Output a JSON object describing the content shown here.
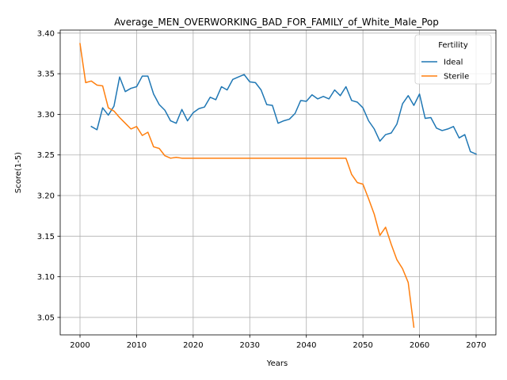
{
  "chart_data": {
    "type": "line",
    "title": "Average_MEN_OVERWORKING_BAD_FOR_FAMILY_of_White_Male_Pop",
    "xlabel": "Years",
    "ylabel": "Score(1-5)",
    "xlim": [
      1996.5,
      2073.5
    ],
    "ylim": [
      3.0285,
      3.4037
    ],
    "xticks": [
      2000,
      2010,
      2020,
      2030,
      2040,
      2050,
      2060,
      2070
    ],
    "yticks": [
      3.05,
      3.1,
      3.15,
      3.2,
      3.25,
      3.3,
      3.35,
      3.4
    ],
    "grid": true,
    "legend": {
      "title": "Fertility",
      "position": "top-right"
    },
    "series": [
      {
        "name": "Ideal",
        "color": "#1f77b4",
        "x": [
          2002,
          2003,
          2004,
          2005,
          2006,
          2007,
          2008,
          2009,
          2010,
          2011,
          2012,
          2013,
          2014,
          2015,
          2016,
          2017,
          2018,
          2019,
          2020,
          2021,
          2022,
          2023,
          2024,
          2025,
          2026,
          2027,
          2028,
          2029,
          2030,
          2031,
          2032,
          2033,
          2034,
          2035,
          2036,
          2037,
          2038,
          2039,
          2040,
          2041,
          2042,
          2043,
          2044,
          2045,
          2046,
          2047,
          2048,
          2049,
          2050,
          2051,
          2052,
          2053,
          2054,
          2055,
          2056,
          2057,
          2058,
          2059,
          2060,
          2061,
          2062,
          2063,
          2064,
          2065,
          2066,
          2067,
          2068,
          2069,
          2070
        ],
        "values": [
          3.285,
          3.281,
          3.308,
          3.299,
          3.31,
          3.346,
          3.328,
          3.332,
          3.334,
          3.347,
          3.347,
          3.325,
          3.312,
          3.305,
          3.292,
          3.289,
          3.306,
          3.292,
          3.302,
          3.307,
          3.309,
          3.321,
          3.318,
          3.334,
          3.33,
          3.343,
          3.346,
          3.349,
          3.34,
          3.339,
          3.33,
          3.312,
          3.311,
          3.289,
          3.292,
          3.294,
          3.301,
          3.317,
          3.316,
          3.324,
          3.319,
          3.322,
          3.319,
          3.33,
          3.323,
          3.334,
          3.317,
          3.315,
          3.308,
          3.292,
          3.282,
          3.267,
          3.275,
          3.277,
          3.288,
          3.313,
          3.323,
          3.311,
          3.325,
          3.295,
          3.296,
          3.283,
          3.28,
          3.282,
          3.285,
          3.271,
          3.275,
          3.254,
          3.251
        ]
      },
      {
        "name": "Sterile",
        "color": "#ff7f0e",
        "x": [
          2000,
          2001,
          2002,
          2003,
          2004,
          2005,
          2006,
          2007,
          2008,
          2009,
          2010,
          2011,
          2012,
          2013,
          2014,
          2015,
          2016,
          2017,
          2018,
          2019,
          2020,
          2021,
          2022,
          2023,
          2024,
          2025,
          2026,
          2027,
          2028,
          2029,
          2030,
          2031,
          2032,
          2033,
          2034,
          2035,
          2036,
          2037,
          2038,
          2039,
          2040,
          2041,
          2042,
          2043,
          2044,
          2045,
          2046,
          2047,
          2048,
          2049,
          2050,
          2051,
          2052,
          2053,
          2054,
          2055,
          2056,
          2057,
          2058,
          2059
        ],
        "values": [
          3.387,
          3.339,
          3.341,
          3.336,
          3.335,
          3.308,
          3.304,
          3.296,
          3.289,
          3.282,
          3.285,
          3.274,
          3.278,
          3.26,
          3.258,
          3.249,
          3.246,
          3.247,
          3.246,
          3.246,
          3.246,
          3.246,
          3.246,
          3.246,
          3.246,
          3.246,
          3.246,
          3.246,
          3.246,
          3.246,
          3.246,
          3.246,
          3.246,
          3.246,
          3.246,
          3.246,
          3.246,
          3.246,
          3.246,
          3.246,
          3.246,
          3.246,
          3.246,
          3.246,
          3.246,
          3.246,
          3.246,
          3.246,
          3.226,
          3.216,
          3.214,
          3.196,
          3.177,
          3.151,
          3.161,
          3.14,
          3.121,
          3.11,
          3.093,
          3.038
        ]
      }
    ]
  }
}
